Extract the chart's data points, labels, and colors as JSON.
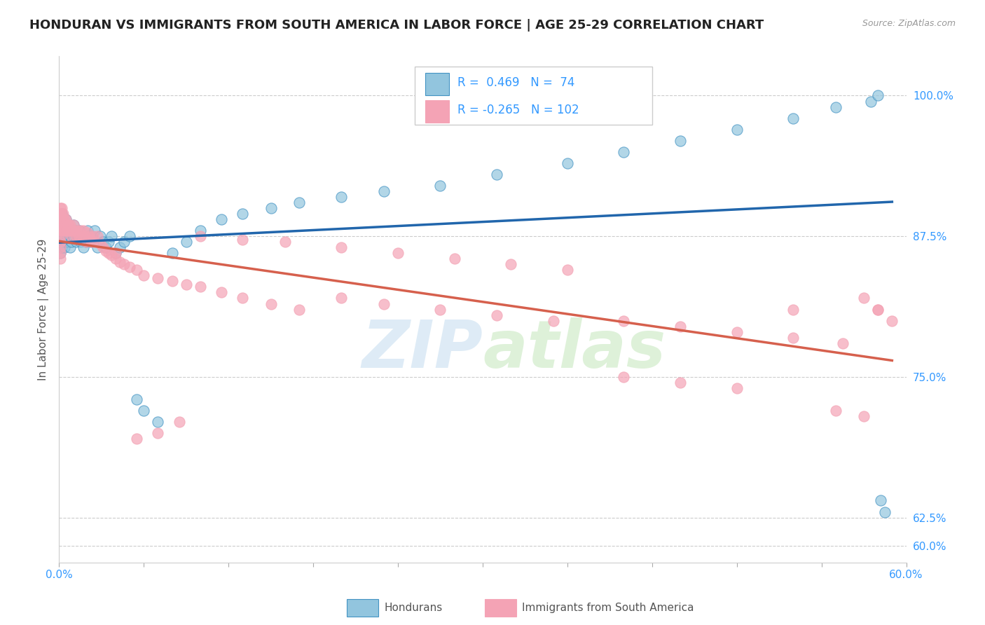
{
  "title": "HONDURAN VS IMMIGRANTS FROM SOUTH AMERICA IN LABOR FORCE | AGE 25-29 CORRELATION CHART",
  "source": "Source: ZipAtlas.com",
  "ylabel": "In Labor Force | Age 25-29",
  "xlim": [
    0.0,
    0.6
  ],
  "ylim": [
    0.585,
    1.035
  ],
  "xticks": [
    0.0,
    0.06,
    0.12,
    0.18,
    0.24,
    0.3,
    0.36,
    0.42,
    0.48,
    0.54,
    0.6
  ],
  "yticks": [
    0.6,
    0.625,
    0.75,
    0.875,
    1.0
  ],
  "ytick_labels": [
    "60.0%",
    "62.5%",
    "75.0%",
    "87.5%",
    "100.0%"
  ],
  "blue_color": "#92c5de",
  "blue_edge_color": "#4393c3",
  "blue_line_color": "#2166ac",
  "pink_color": "#f4a3b5",
  "pink_edge_color": "#d6604d",
  "pink_line_color": "#d6604d",
  "blue_R": 0.469,
  "blue_N": 74,
  "pink_R": -0.265,
  "pink_N": 102,
  "blue_x": [
    0.001,
    0.001,
    0.001,
    0.002,
    0.002,
    0.002,
    0.002,
    0.003,
    0.003,
    0.003,
    0.004,
    0.004,
    0.004,
    0.005,
    0.005,
    0.005,
    0.006,
    0.006,
    0.007,
    0.007,
    0.008,
    0.008,
    0.009,
    0.009,
    0.01,
    0.01,
    0.011,
    0.012,
    0.013,
    0.014,
    0.015,
    0.016,
    0.017,
    0.018,
    0.019,
    0.02,
    0.021,
    0.022,
    0.023,
    0.025,
    0.027,
    0.029,
    0.031,
    0.033,
    0.035,
    0.037,
    0.04,
    0.043,
    0.046,
    0.05,
    0.055,
    0.06,
    0.07,
    0.08,
    0.09,
    0.1,
    0.115,
    0.13,
    0.15,
    0.17,
    0.2,
    0.23,
    0.27,
    0.31,
    0.36,
    0.4,
    0.44,
    0.48,
    0.52,
    0.55,
    0.575,
    0.58,
    0.582,
    0.585
  ],
  "blue_y": [
    0.88,
    0.87,
    0.86,
    0.895,
    0.885,
    0.875,
    0.865,
    0.89,
    0.88,
    0.87,
    0.885,
    0.875,
    0.865,
    0.89,
    0.88,
    0.87,
    0.885,
    0.875,
    0.88,
    0.87,
    0.875,
    0.865,
    0.88,
    0.87,
    0.885,
    0.875,
    0.88,
    0.87,
    0.875,
    0.88,
    0.87,
    0.875,
    0.865,
    0.875,
    0.87,
    0.88,
    0.875,
    0.87,
    0.875,
    0.88,
    0.865,
    0.875,
    0.87,
    0.865,
    0.87,
    0.875,
    0.86,
    0.865,
    0.87,
    0.875,
    0.73,
    0.72,
    0.71,
    0.86,
    0.87,
    0.88,
    0.89,
    0.895,
    0.9,
    0.905,
    0.91,
    0.915,
    0.92,
    0.93,
    0.94,
    0.95,
    0.96,
    0.97,
    0.98,
    0.99,
    0.995,
    1.0,
    0.64,
    0.63
  ],
  "pink_x": [
    0.001,
    0.001,
    0.001,
    0.001,
    0.001,
    0.001,
    0.001,
    0.001,
    0.001,
    0.001,
    0.002,
    0.002,
    0.002,
    0.002,
    0.002,
    0.003,
    0.003,
    0.003,
    0.003,
    0.004,
    0.004,
    0.004,
    0.005,
    0.005,
    0.005,
    0.006,
    0.006,
    0.007,
    0.007,
    0.008,
    0.008,
    0.009,
    0.009,
    0.01,
    0.01,
    0.011,
    0.012,
    0.013,
    0.014,
    0.015,
    0.016,
    0.017,
    0.018,
    0.019,
    0.02,
    0.021,
    0.022,
    0.023,
    0.024,
    0.025,
    0.027,
    0.029,
    0.031,
    0.033,
    0.035,
    0.037,
    0.04,
    0.043,
    0.046,
    0.05,
    0.055,
    0.06,
    0.07,
    0.08,
    0.09,
    0.1,
    0.115,
    0.13,
    0.15,
    0.17,
    0.2,
    0.23,
    0.27,
    0.31,
    0.35,
    0.4,
    0.44,
    0.48,
    0.52,
    0.555,
    0.57,
    0.58,
    0.1,
    0.13,
    0.16,
    0.2,
    0.24,
    0.28,
    0.32,
    0.36,
    0.4,
    0.44,
    0.48,
    0.52,
    0.55,
    0.57,
    0.58,
    0.59,
    0.04,
    0.055,
    0.07,
    0.085
  ],
  "pink_y": [
    0.9,
    0.895,
    0.89,
    0.885,
    0.88,
    0.875,
    0.87,
    0.865,
    0.86,
    0.855,
    0.9,
    0.895,
    0.89,
    0.885,
    0.88,
    0.895,
    0.89,
    0.885,
    0.88,
    0.89,
    0.885,
    0.88,
    0.89,
    0.885,
    0.88,
    0.885,
    0.88,
    0.885,
    0.88,
    0.885,
    0.88,
    0.88,
    0.875,
    0.885,
    0.88,
    0.88,
    0.875,
    0.88,
    0.875,
    0.88,
    0.875,
    0.88,
    0.875,
    0.87,
    0.878,
    0.875,
    0.872,
    0.87,
    0.875,
    0.87,
    0.875,
    0.868,
    0.865,
    0.862,
    0.86,
    0.858,
    0.855,
    0.852,
    0.85,
    0.848,
    0.845,
    0.84,
    0.838,
    0.835,
    0.832,
    0.83,
    0.825,
    0.82,
    0.815,
    0.81,
    0.82,
    0.815,
    0.81,
    0.805,
    0.8,
    0.8,
    0.795,
    0.79,
    0.785,
    0.78,
    0.82,
    0.81,
    0.875,
    0.872,
    0.87,
    0.865,
    0.86,
    0.855,
    0.85,
    0.845,
    0.75,
    0.745,
    0.74,
    0.81,
    0.72,
    0.715,
    0.81,
    0.8,
    0.86,
    0.695,
    0.7,
    0.71
  ]
}
